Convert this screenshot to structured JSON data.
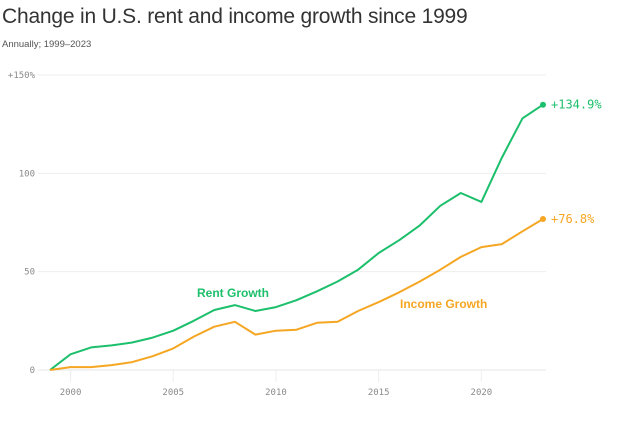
{
  "chart_data": {
    "type": "line",
    "title": "Change in U.S. rent and income growth since 1999",
    "subtitle": "Annually; 1999–2023",
    "xlabel": "",
    "ylabel": "",
    "x": [
      1999,
      2000,
      2001,
      2002,
      2003,
      2004,
      2005,
      2006,
      2007,
      2008,
      2009,
      2010,
      2011,
      2012,
      2013,
      2014,
      2015,
      2016,
      2017,
      2018,
      2019,
      2020,
      2021,
      2022,
      2023
    ],
    "xlim": [
      1999,
      2023
    ],
    "ylim": [
      0,
      150
    ],
    "x_ticks": [
      2000,
      2005,
      2010,
      2015,
      2020
    ],
    "x_tick_labels": [
      "2000",
      "2005",
      "2010",
      "2015",
      "2020"
    ],
    "y_ticks": [
      0,
      50,
      100,
      150
    ],
    "y_tick_labels": [
      "0",
      "50",
      "100",
      "+150%"
    ],
    "grid": "horizontal",
    "series": [
      {
        "name": "Rent Growth",
        "color": "#1cbf6b",
        "end_label": "+134.9%",
        "values": [
          0,
          8,
          11.5,
          12.5,
          14,
          16.5,
          20,
          25,
          30.5,
          33,
          30,
          32,
          35.5,
          40,
          45,
          51,
          59.5,
          66,
          73.5,
          83.5,
          90,
          85.5,
          108,
          128,
          134.9
        ]
      },
      {
        "name": "Income Growth",
        "color": "#f5a623",
        "end_label": "+76.8%",
        "values": [
          0,
          1.5,
          1.5,
          2.5,
          4,
          7,
          11,
          17,
          22,
          24.5,
          18,
          20,
          20.5,
          24,
          24.5,
          30,
          34.5,
          39.5,
          45,
          51,
          57.5,
          62.5,
          64,
          70.5,
          76.8
        ]
      }
    ]
  }
}
